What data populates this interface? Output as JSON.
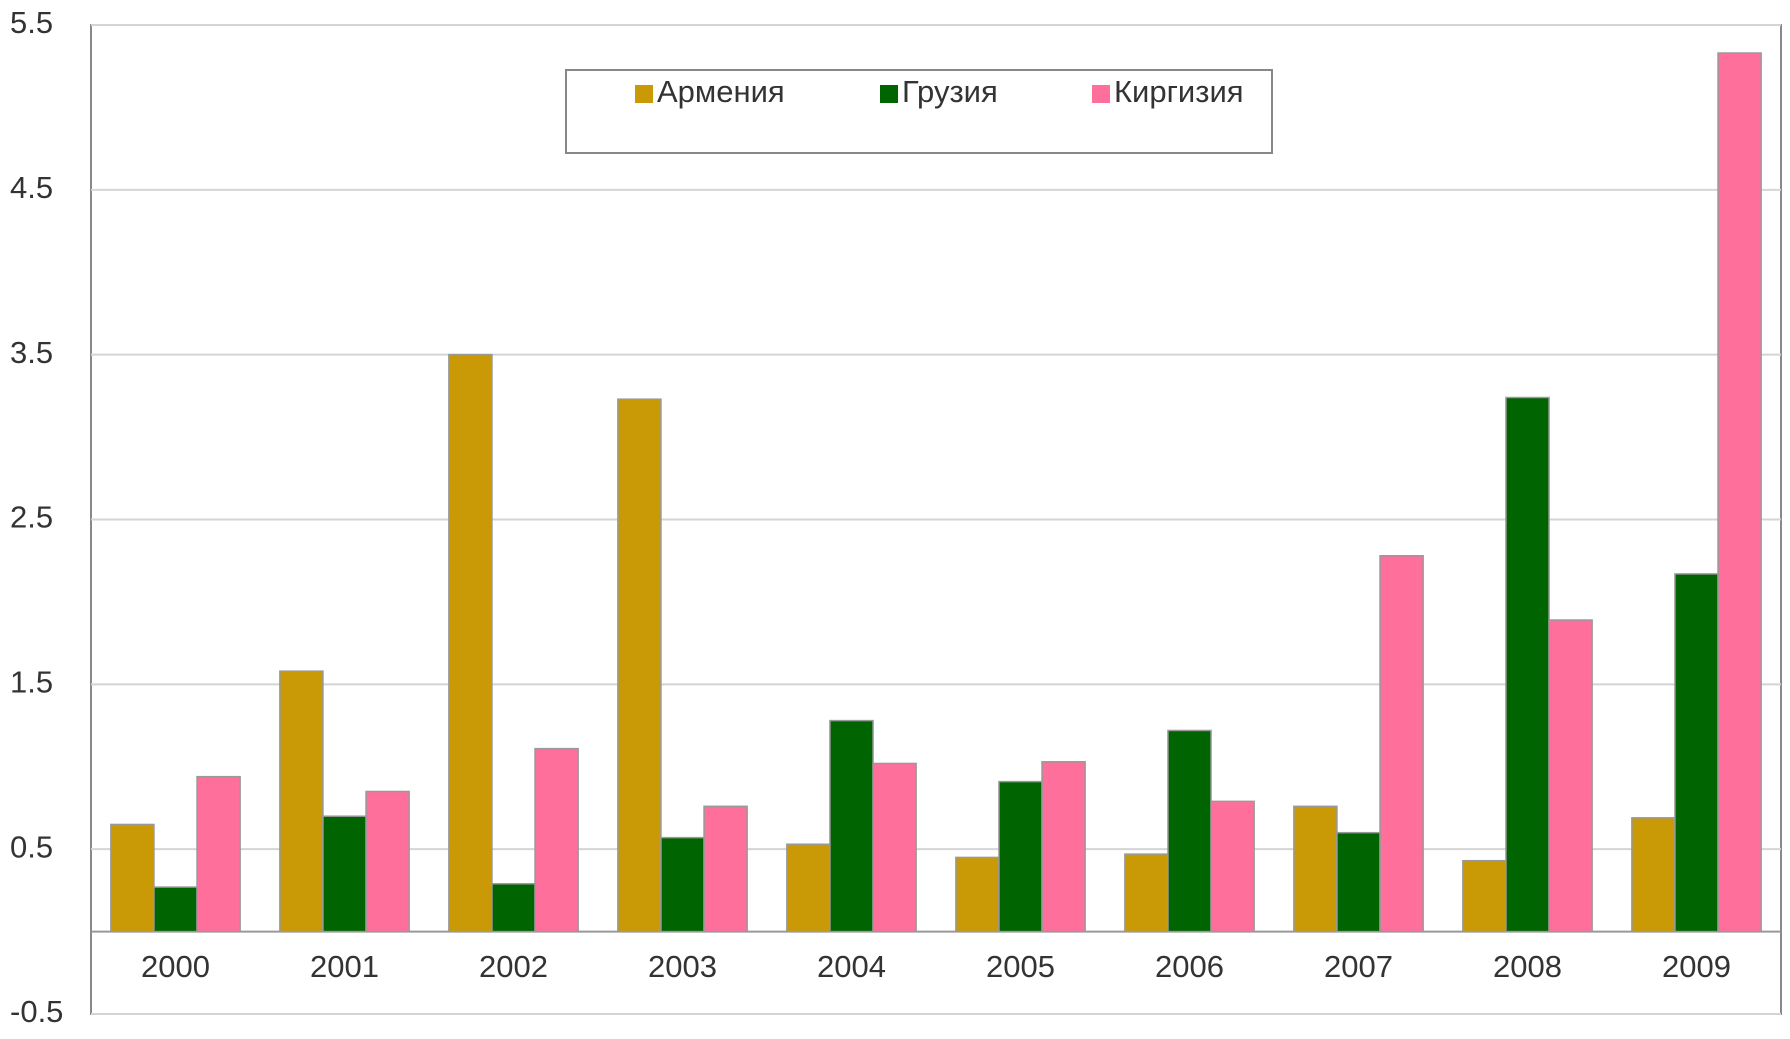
{
  "chart_data": {
    "type": "bar",
    "categories": [
      "2000",
      "2001",
      "2002",
      "2003",
      "2004",
      "2005",
      "2006",
      "2007",
      "2008",
      "2009"
    ],
    "series": [
      {
        "name": "Армения",
        "color": "#c99a06",
        "values": [
          0.65,
          1.58,
          3.5,
          3.23,
          0.53,
          0.45,
          0.47,
          0.76,
          0.43,
          0.69
        ]
      },
      {
        "name": "Грузия",
        "color": "#006400",
        "values": [
          0.27,
          0.7,
          0.29,
          0.57,
          1.28,
          0.91,
          1.22,
          0.6,
          3.24,
          2.17
        ]
      },
      {
        "name": "Киргизия",
        "color": "#ff6f9c",
        "values": [
          0.94,
          0.85,
          1.11,
          0.76,
          1.02,
          1.03,
          0.79,
          2.28,
          1.89,
          5.33
        ]
      }
    ],
    "ylim": [
      -0.5,
      5.5
    ],
    "yticks": [
      -0.5,
      0.5,
      1.5,
      2.5,
      3.5,
      4.5,
      5.5
    ],
    "grid": true
  }
}
